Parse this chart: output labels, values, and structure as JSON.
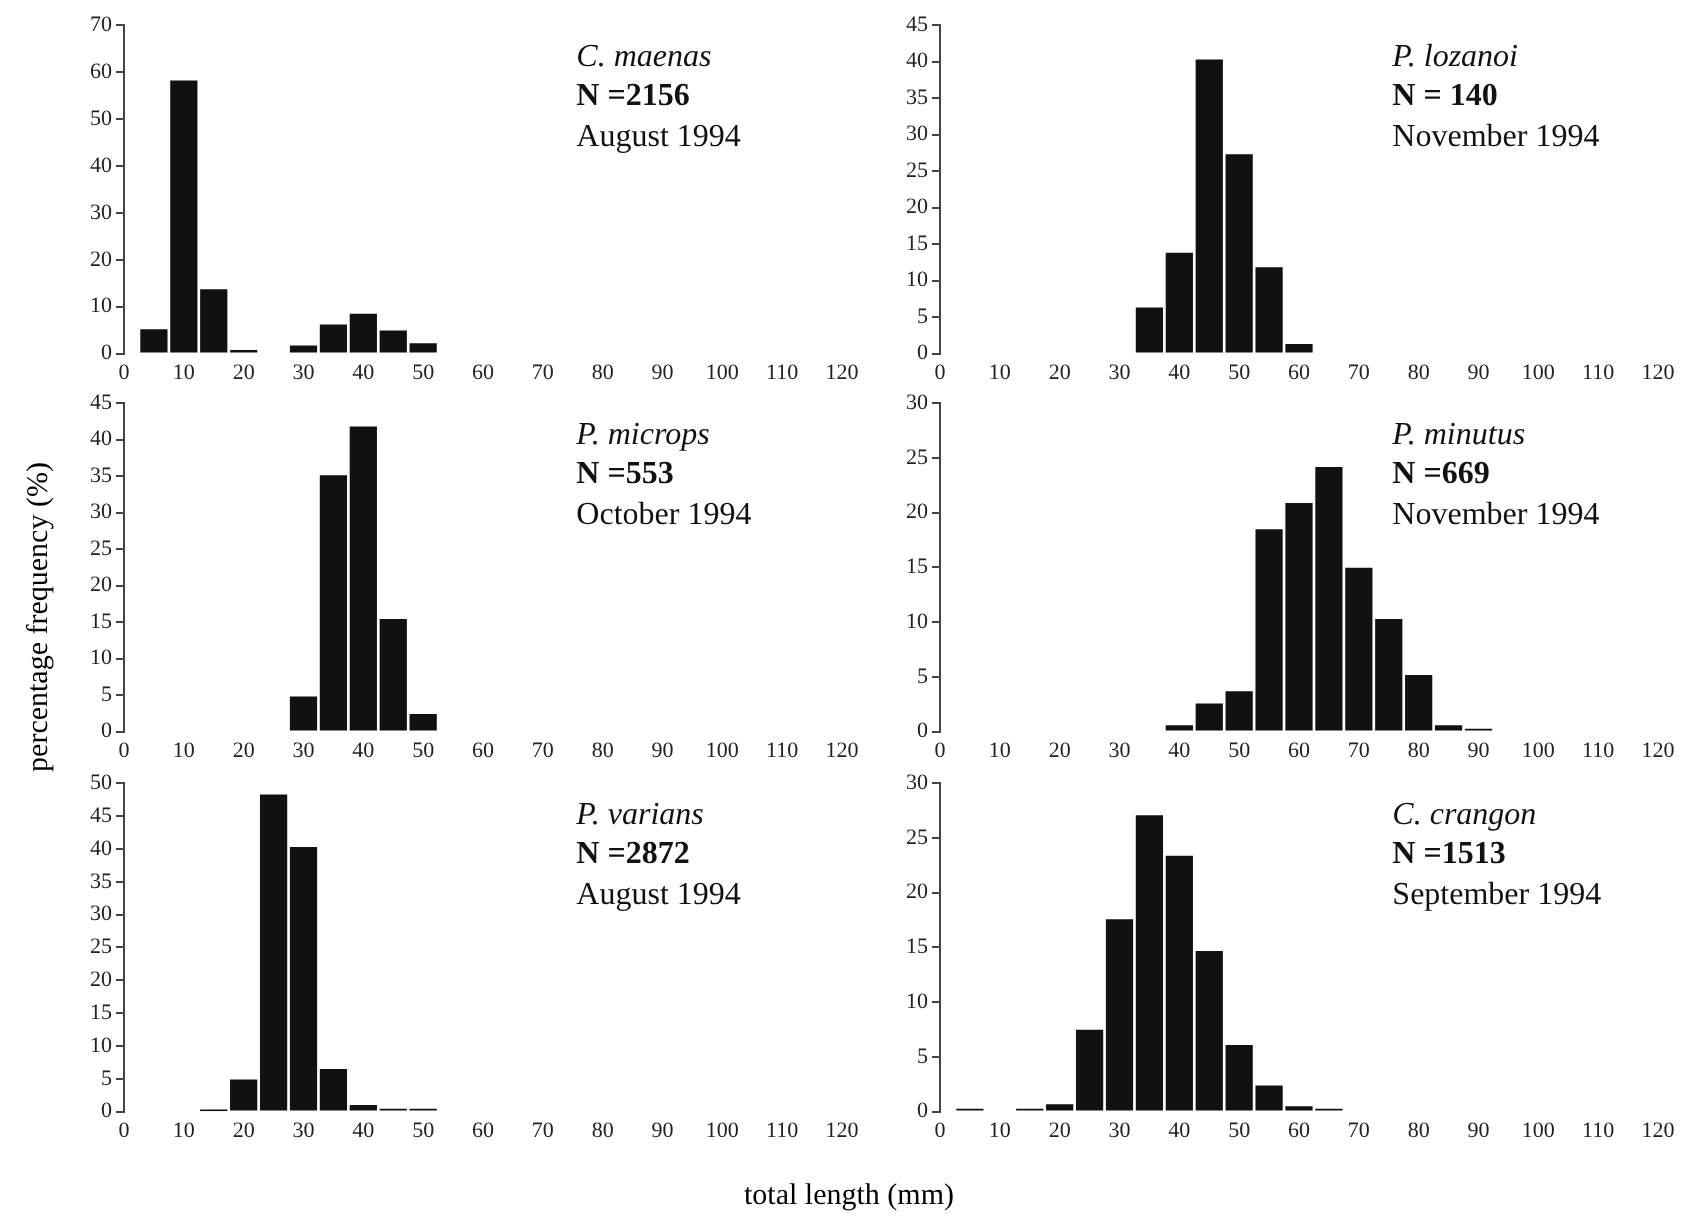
{
  "chart_data": [
    {
      "type": "histogram",
      "bins": [
        2.5,
        7.5,
        12.5,
        17.5,
        22.5,
        27.5,
        32.5,
        37.5,
        42.5,
        47.5,
        52.5
      ],
      "values": [
        5.5,
        58.5,
        14,
        1,
        0,
        2,
        6.5,
        8.8,
        5.2,
        2.5
      ],
      "color": "#111111",
      "xlim": [
        0,
        120
      ],
      "xticks": [
        0,
        10,
        20,
        30,
        40,
        50,
        60,
        70,
        80,
        90,
        100,
        110,
        120
      ],
      "ylim": [
        0,
        70
      ],
      "yticks": [
        0,
        10,
        20,
        30,
        40,
        50,
        60,
        70
      ],
      "grid": false,
      "annotations": [
        "C. maenas",
        "N =2156",
        "August 1994"
      ]
    },
    {
      "type": "histogram",
      "bins": [
        32.5,
        37.5,
        42.5,
        47.5,
        52.5,
        57.5,
        62.5
      ],
      "values": [
        6.5,
        14,
        40.5,
        27.5,
        12,
        1.5
      ],
      "color": "#111111",
      "xlim": [
        0,
        120
      ],
      "xticks": [
        0,
        10,
        20,
        30,
        40,
        50,
        60,
        70,
        80,
        90,
        100,
        110,
        120
      ],
      "ylim": [
        0,
        45
      ],
      "yticks": [
        0,
        5,
        10,
        15,
        20,
        25,
        30,
        35,
        40,
        45
      ],
      "grid": false,
      "annotations": [
        "P. lozanoi",
        "N = 140",
        "November 1994"
      ]
    },
    {
      "type": "histogram",
      "bins": [
        27.5,
        32.5,
        37.5,
        42.5,
        47.5,
        52.5
      ],
      "values": [
        5,
        35.3,
        42,
        15.6,
        2.6
      ],
      "color": "#111111",
      "xlim": [
        0,
        120
      ],
      "xticks": [
        0,
        10,
        20,
        30,
        40,
        50,
        60,
        70,
        80,
        90,
        100,
        110,
        120
      ],
      "ylim": [
        0,
        45
      ],
      "yticks": [
        0,
        5,
        10,
        15,
        20,
        25,
        30,
        35,
        40,
        45
      ],
      "grid": false,
      "ylabel": "percentage frequency (%)",
      "annotations": [
        "P. microps",
        "N =553",
        "October 1994"
      ]
    },
    {
      "type": "histogram",
      "bins": [
        37.5,
        42.5,
        47.5,
        52.5,
        57.5,
        62.5,
        67.5,
        72.5,
        77.5,
        82.5,
        87.5,
        92.5
      ],
      "values": [
        0.7,
        2.7,
        3.8,
        18.6,
        21,
        24.3,
        15.1,
        10.4,
        5.3,
        0.7,
        0.3
      ],
      "color": "#111111",
      "xlim": [
        0,
        120
      ],
      "xticks": [
        0,
        10,
        20,
        30,
        40,
        50,
        60,
        70,
        80,
        90,
        100,
        110,
        120
      ],
      "ylim": [
        0,
        30
      ],
      "yticks": [
        0,
        5,
        10,
        15,
        20,
        25,
        30
      ],
      "grid": false,
      "annotations": [
        "P. minutus",
        "N =669",
        "November 1994"
      ]
    },
    {
      "type": "histogram",
      "bins": [
        12.5,
        17.5,
        22.5,
        27.5,
        32.5,
        37.5,
        42.5,
        47.5,
        52.5
      ],
      "values": [
        0.3,
        5.1,
        48.5,
        40.5,
        6.7,
        1.2,
        0.5,
        0.5
      ],
      "color": "#111111",
      "xlim": [
        0,
        120
      ],
      "xticks": [
        0,
        10,
        20,
        30,
        40,
        50,
        60,
        70,
        80,
        90,
        100,
        110,
        120
      ],
      "ylim": [
        0,
        50
      ],
      "yticks": [
        0,
        5,
        10,
        15,
        20,
        25,
        30,
        35,
        40,
        45,
        50
      ],
      "grid": false,
      "xlabel": "total length (mm)",
      "annotations": [
        "P. varians",
        "N =2872",
        "August 1994"
      ]
    },
    {
      "type": "histogram",
      "bins": [
        2.5,
        7.5,
        12.5,
        17.5,
        22.5,
        27.5,
        32.5,
        37.5,
        42.5,
        47.5,
        52.5,
        57.5,
        62.5,
        67.5
      ],
      "values": [
        0.3,
        0,
        0.3,
        0.8,
        7.6,
        17.7,
        27.2,
        23.5,
        14.8,
        6.2,
        2.5,
        0.6,
        0.3
      ],
      "color": "#111111",
      "xlim": [
        0,
        120
      ],
      "xticks": [
        0,
        10,
        20,
        30,
        40,
        50,
        60,
        70,
        80,
        90,
        100,
        110,
        120
      ],
      "ylim": [
        0,
        30
      ],
      "yticks": [
        0,
        5,
        10,
        15,
        20,
        25,
        30
      ],
      "grid": false,
      "annotations": [
        "C. crangon",
        "N =1513",
        "September 1994"
      ]
    }
  ]
}
